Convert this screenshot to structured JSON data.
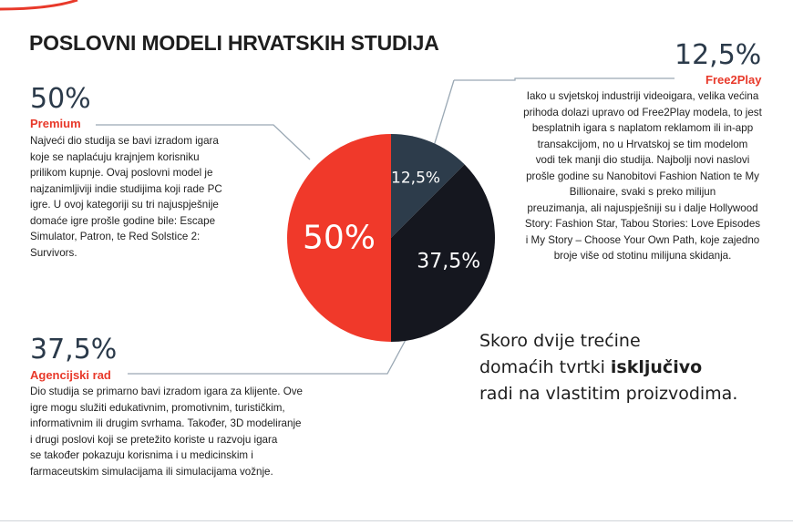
{
  "title": "POSLOVNI MODELI HRVATSKIH STUDIJA",
  "colors": {
    "premium": "#f0392a",
    "agency": "#15171f",
    "f2p": "#2d3c4b",
    "accent": "#e8392a",
    "connector": "#9aa8b4"
  },
  "premium": {
    "pct": "50%",
    "label": "Premium",
    "lines": [
      "Najveći dio studija se bavi izradom igara",
      "koje se naplaćuju krajnjem korisniku",
      "prilikom kupnje. Ovaj poslovni model je",
      "najzanimljiviji indie studijima koji rade PC",
      "igre. U ovoj kategoriji su tri najuspješnije",
      "domaće igre prošle godine bile: Escape",
      "Simulator, Patron, te Red Solstice 2:",
      "Survivors."
    ]
  },
  "agency": {
    "pct": "37,5%",
    "label": "Agencijski rad",
    "lines": [
      "Dio studija se primarno bavi izradom igara za klijente. Ove",
      "igre mogu služiti edukativnim, promotivnim, turističkim,",
      "informativnim ili drugim svrhama. Također, 3D modeliranje",
      "i drugi poslovi koji se pretežito koriste u razvoju igara",
      "se također pokazuju korisnima i u medicinskim i",
      "farmaceutskim simulacijama ili simulacijama vožnje."
    ]
  },
  "f2p": {
    "pct": "12,5%",
    "label": "Free2Play",
    "lines": [
      "Iako u svjetskoj industriji videoigara, velika većina",
      "prihoda dolazi upravo od Free2Play modela, to jest",
      "besplatnih igara s naplatom reklamom ili in-app",
      "transakcijom, no u Hrvatskoj se tim modelom",
      "vodi tek manji dio studija. Najbolji novi naslovi",
      "prošle godine su Nanobitovi Fashion Nation te My",
      "Billionaire, svaki s preko milijun",
      "preuzimanja, ali najuspješniji su i dalje Hollywood",
      "Story: Fashion Star, Tabou Stories: Love Episodes",
      "i My Story – Choose Your Own Path, koje zajedno",
      "broje više od stotinu milijuna skidanja."
    ]
  },
  "summary": {
    "line1": "Skoro dvije trećine",
    "line2_prefix": "domaćih tvrtki ",
    "line2_bold": "isključivo",
    "line3": "radi na vlastitim proizvodima."
  },
  "chart_data": {
    "type": "pie",
    "title": "POSLOVNI MODELI HRVATSKIH STUDIJA",
    "categories": [
      "Premium",
      "Agencijski rad",
      "Free2Play"
    ],
    "values": [
      50,
      37.5,
      12.5
    ],
    "labels": [
      "50%",
      "37,5%",
      "12,5%"
    ],
    "colors": [
      "#f0392a",
      "#15171f",
      "#2d3c4b"
    ],
    "legend": "none"
  }
}
